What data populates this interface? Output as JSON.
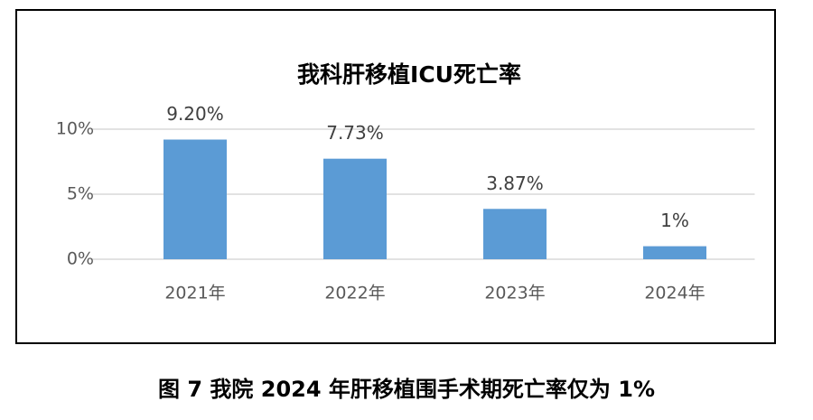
{
  "chart_data": {
    "type": "bar",
    "title": "我科肝移植ICU死亡率",
    "categories": [
      "2021年",
      "2022年",
      "2023年",
      "2024年"
    ],
    "values": [
      9.2,
      7.73,
      3.87,
      1
    ],
    "value_labels": [
      "9.20%",
      "7.73%",
      "3.87%",
      "1%"
    ],
    "color": "#5b9bd5",
    "ylim": [
      0,
      10
    ],
    "yticks": [
      {
        "value": 0,
        "label": "0%"
      },
      {
        "value": 5,
        "label": "5%"
      },
      {
        "value": 10,
        "label": "10%"
      }
    ],
    "grid": true
  },
  "caption": "图 7 我院 2024 年肝移植围手术期死亡率仅为 1%"
}
